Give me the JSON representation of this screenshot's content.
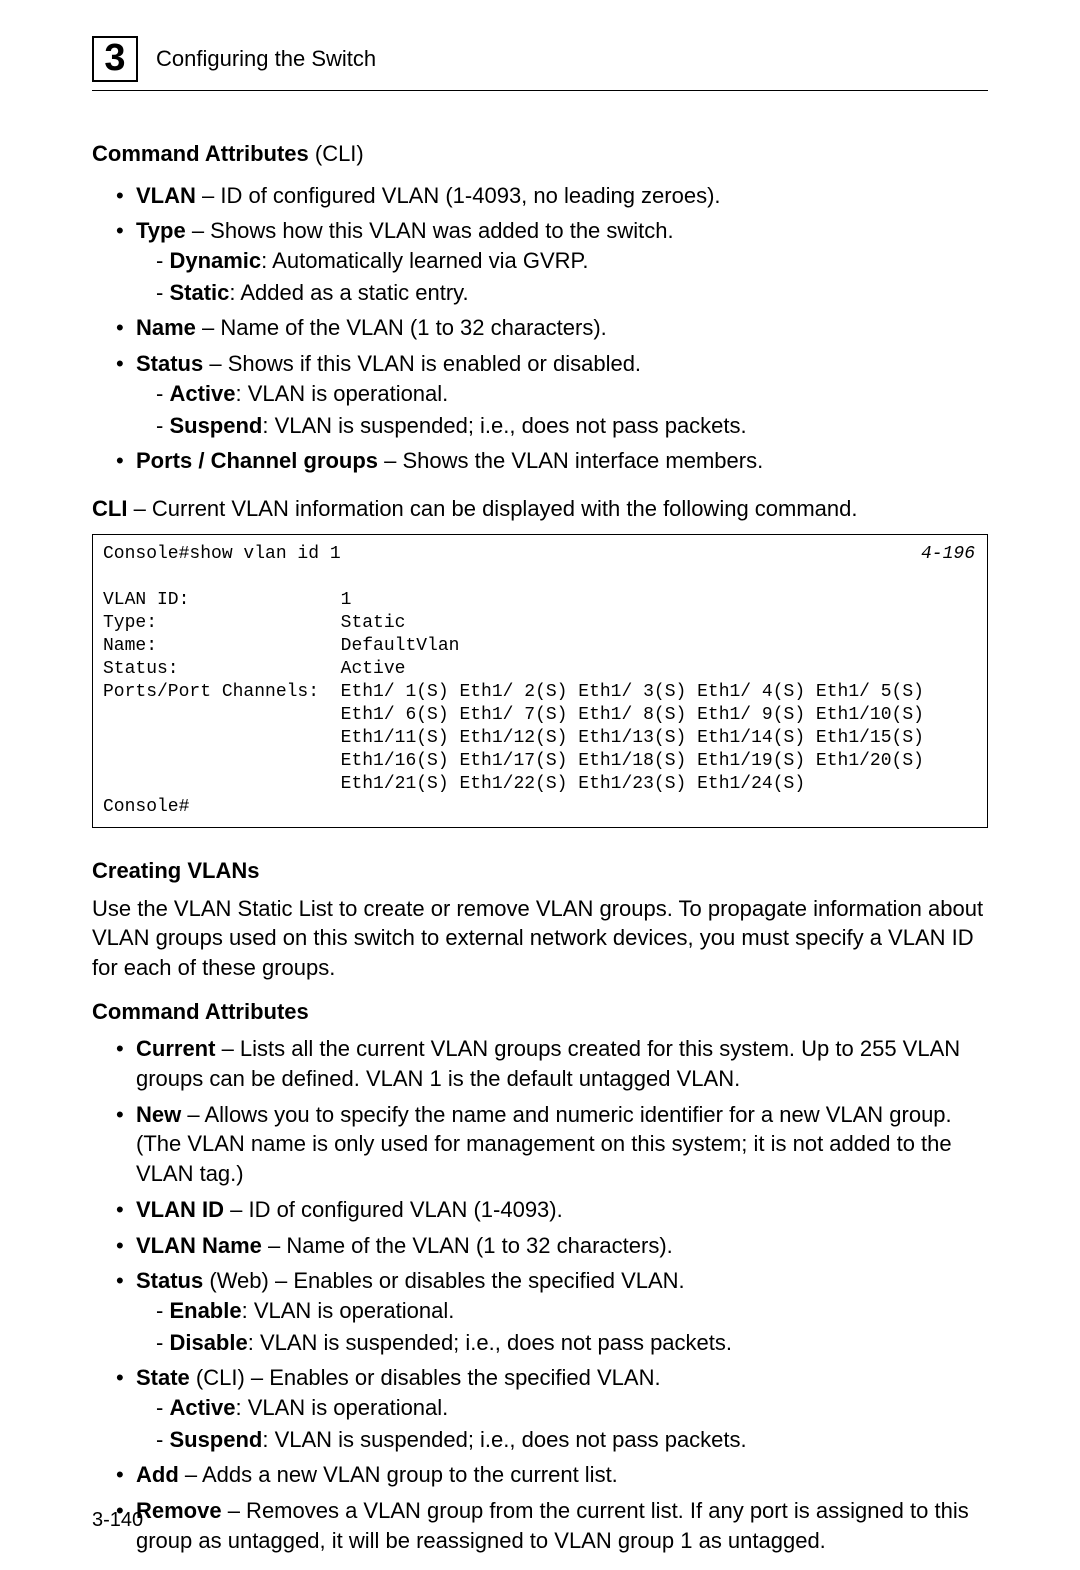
{
  "header": {
    "chapter_number": "3",
    "chapter_title": "Configuring the Switch"
  },
  "section1": {
    "title_bold": "Command Attributes",
    "title_paren": " (CLI)",
    "items": [
      {
        "term": "VLAN",
        "desc": " – ID of configured VLAN (1-4093, no leading zeroes)."
      },
      {
        "term": "Type",
        "desc": " – Shows how this VLAN was added to the switch.",
        "subs": [
          {
            "term": "Dynamic",
            "desc": ": Automatically learned via GVRP."
          },
          {
            "term": "Static",
            "desc": ": Added as a static entry."
          }
        ]
      },
      {
        "term": "Name",
        "desc": " – Name of the VLAN (1 to 32 characters)."
      },
      {
        "term": "Status",
        "desc": " – Shows if this VLAN is enabled or disabled.",
        "subs": [
          {
            "term": "Active",
            "desc": ": VLAN is operational."
          },
          {
            "term": "Suspend",
            "desc": ": VLAN is suspended; i.e., does not pass packets."
          }
        ]
      },
      {
        "term": "Ports / Channel groups",
        "desc": " – Shows the VLAN interface members."
      }
    ]
  },
  "cli_line": {
    "bold": "CLI",
    "rest": " – Current VLAN information can be displayed with the following command."
  },
  "code": {
    "ref": "4-196",
    "text": "Console#show vlan id 1\n\nVLAN ID:              1\nType:                 Static\nName:                 DefaultVlan\nStatus:               Active\nPorts/Port Channels:  Eth1/ 1(S) Eth1/ 2(S) Eth1/ 3(S) Eth1/ 4(S) Eth1/ 5(S)\n                      Eth1/ 6(S) Eth1/ 7(S) Eth1/ 8(S) Eth1/ 9(S) Eth1/10(S)\n                      Eth1/11(S) Eth1/12(S) Eth1/13(S) Eth1/14(S) Eth1/15(S)\n                      Eth1/16(S) Eth1/17(S) Eth1/18(S) Eth1/19(S) Eth1/20(S)\n                      Eth1/21(S) Eth1/22(S) Eth1/23(S) Eth1/24(S)\nConsole#"
  },
  "section2": {
    "heading": "Creating VLANs",
    "para": "Use the VLAN Static List to create or remove VLAN groups. To propagate information about VLAN groups used on this switch to external network devices, you must specify a VLAN ID for each of these groups.",
    "subheading": "Command Attributes",
    "items": [
      {
        "term": "Current",
        "desc": " – Lists all the current VLAN groups created for this system. Up to 255 VLAN groups can be defined. VLAN 1 is the default untagged VLAN."
      },
      {
        "term": "New",
        "desc": " – Allows you to specify the name and numeric identifier for a new VLAN group. (The VLAN name is only used for management on this system; it is not added to the VLAN tag.)"
      },
      {
        "term": "VLAN ID",
        "desc": " – ID of configured VLAN (1-4093)."
      },
      {
        "term": "VLAN Name",
        "desc": " – Name of the VLAN (1 to 32 characters)."
      },
      {
        "term": "Status",
        "desc": " (Web) – Enables or disables the specified VLAN.",
        "subs": [
          {
            "term": "Enable",
            "desc": ": VLAN is operational."
          },
          {
            "term": "Disable",
            "desc": ": VLAN is suspended; i.e., does not pass packets."
          }
        ]
      },
      {
        "term": "State",
        "desc": " (CLI) – Enables or disables the specified VLAN.",
        "subs": [
          {
            "term": "Active",
            "desc": ": VLAN is operational."
          },
          {
            "term": "Suspend",
            "desc": ": VLAN is suspended; i.e., does not pass packets."
          }
        ]
      },
      {
        "term": "Add",
        "desc": " – Adds a new VLAN group to the current list."
      },
      {
        "term": "Remove",
        "desc": " – Removes a VLAN group from the current list. If any port is assigned to this group as untagged, it will be reassigned to VLAN group 1 as untagged."
      }
    ]
  },
  "page_number": "3-140"
}
